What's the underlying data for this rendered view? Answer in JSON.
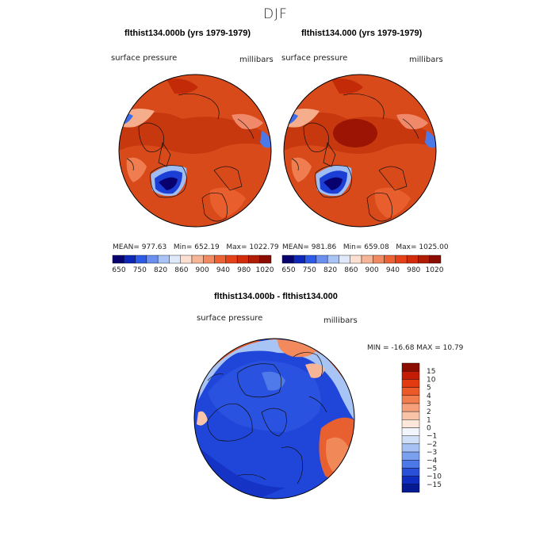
{
  "season_title": "DJF",
  "panels": [
    {
      "title": "flthist134.000b (yrs 1979-1979)",
      "variable_label": "surface pressure",
      "units_label": "millibars",
      "stats": {
        "mean_label": "MEAN=",
        "mean": "977.63",
        "min_label": "Min=",
        "min": "652.19",
        "max_label": "Max=",
        "max": "1022.79"
      }
    },
    {
      "title": "flthist134.000 (yrs 1979-1979)",
      "variable_label": "surface pressure",
      "units_label": "millibars",
      "stats": {
        "mean_label": "MEAN=",
        "mean": "981.86",
        "min_label": "Min=",
        "min": "659.08",
        "max_label": "Max=",
        "max": "1025.00"
      }
    }
  ],
  "pressure_colorbar": {
    "labels": [
      "650",
      "750",
      "820",
      "860",
      "900",
      "940",
      "980",
      "1020"
    ],
    "colors": [
      "#08006e",
      "#0d27b8",
      "#2d5ae6",
      "#6a8fef",
      "#a9c3f5",
      "#dfe9fa",
      "#fbe0d2",
      "#f6b597",
      "#f18a60",
      "#ec6234",
      "#e54219",
      "#d32c0b",
      "#b01d05",
      "#8a0d00"
    ]
  },
  "difference": {
    "title": "flthist134.000b - flthist134.000",
    "variable_label": "surface pressure",
    "units_label": "millibars",
    "minmax_text": "MIN = -16.68 MAX =  10.79",
    "colorbar_labels": [
      "15",
      "10",
      "5",
      "4",
      "3",
      "2",
      "1",
      "0",
      "−1",
      "−2",
      "−3",
      "−4",
      "−5",
      "−10",
      "−15"
    ],
    "colorbar_colors": [
      "#8a0d00",
      "#c41c05",
      "#e33a12",
      "#ec5a2a",
      "#f27d4e",
      "#f6a07b",
      "#f9c3a8",
      "#fde6da",
      "#f2f5fb",
      "#cfdff8",
      "#a6c2f4",
      "#7aa0ef",
      "#4c78e8",
      "#2a4fd9",
      "#0f2dc0",
      "#061a94"
    ]
  }
}
